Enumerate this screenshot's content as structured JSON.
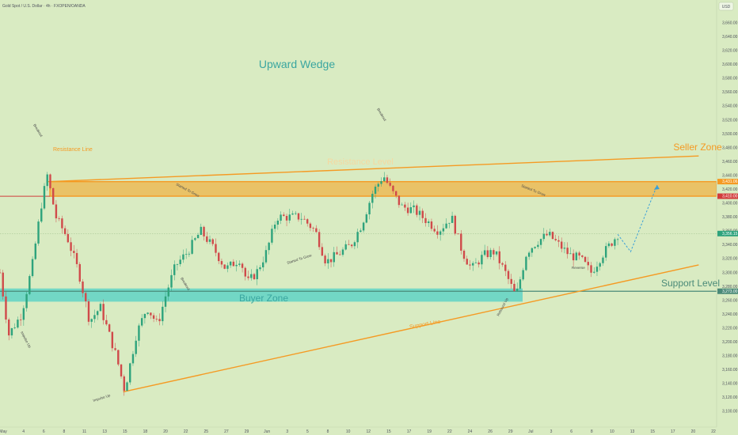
{
  "header": {
    "symbol": "Gold Spot / U.S. Dollar · 4h · FXOPEN/OANDA",
    "currency_button": "USD"
  },
  "colors": {
    "background": "#d9ebc2",
    "up_candle": "#2ea37c",
    "down_candle": "#d04a4a",
    "resistance": "#f59a23",
    "support_zone": "#5fd3c6",
    "support_line_color": "#4a8a78",
    "label_teal": "#3aa6a0",
    "label_orange": "#f59a23",
    "projection": "#3aa0d8",
    "red_level": "#d23c3c"
  },
  "chart_data": {
    "type": "candlestick",
    "title": "Upward Wedge",
    "ylim": [
      3100,
      3670
    ],
    "y_ticks": [
      "3,100.00",
      "3,120.00",
      "3,140.00",
      "3,160.00",
      "3,180.00",
      "3,200.00",
      "3,220.00",
      "3,240.00",
      "3,260.00",
      "3,280.00",
      "3,300.00",
      "3,320.00",
      "3,340.00",
      "3,360.00",
      "3,380.00",
      "3,400.00",
      "3,420.00",
      "3,440.00",
      "3,460.00",
      "3,480.00",
      "3,500.00",
      "3,520.00",
      "3,540.00",
      "3,560.00",
      "3,580.00",
      "3,600.00",
      "3,620.00",
      "3,640.00",
      "3,660.00"
    ],
    "x_ticks": [
      "May",
      "4",
      "6",
      "8",
      "11",
      "13",
      "15",
      "18",
      "20",
      "22",
      "25",
      "27",
      "29",
      "Jun",
      "3",
      "5",
      "8",
      "10",
      "12",
      "15",
      "17",
      "19",
      "22",
      "24",
      "26",
      "29",
      "Jul",
      "3",
      "6",
      "8",
      "10",
      "13",
      "15",
      "17",
      "20",
      "22"
    ],
    "price_badges": [
      {
        "value": "3,431.06",
        "color": "#f59a23"
      },
      {
        "value": "3,410.00",
        "color": "#d23c3c"
      },
      {
        "value": "3,356.15",
        "color": "#2ea37c"
      },
      {
        "value": "3,273.00",
        "color": "#4a8a78"
      }
    ],
    "resistance_zone": {
      "low": 3410,
      "high": 3431
    },
    "support_zone": {
      "low": 3258,
      "high": 3277
    },
    "support_level": 3273,
    "red_level": 3410,
    "resistance_line": {
      "from": [
        0.067,
        3431
      ],
      "to": [
        0.975,
        3468
      ]
    },
    "support_line": {
      "from": [
        0.172,
        3128
      ],
      "to": [
        0.975,
        3311
      ]
    },
    "projection": [
      [
        0.862,
        3355
      ],
      [
        0.88,
        3330
      ],
      [
        0.917,
        3426
      ]
    ],
    "candle_path": [
      [
        0.0,
        3300
      ],
      [
        0.012,
        3210
      ],
      [
        0.03,
        3240
      ],
      [
        0.045,
        3310
      ],
      [
        0.058,
        3400
      ],
      [
        0.066,
        3440
      ],
      [
        0.078,
        3380
      ],
      [
        0.094,
        3350
      ],
      [
        0.11,
        3300
      ],
      [
        0.125,
        3230
      ],
      [
        0.14,
        3250
      ],
      [
        0.162,
        3180
      ],
      [
        0.174,
        3130
      ],
      [
        0.19,
        3210
      ],
      [
        0.205,
        3250
      ],
      [
        0.22,
        3225
      ],
      [
        0.232,
        3270
      ],
      [
        0.245,
        3310
      ],
      [
        0.262,
        3330
      ],
      [
        0.28,
        3360
      ],
      [
        0.298,
        3335
      ],
      [
        0.315,
        3305
      ],
      [
        0.335,
        3320
      ],
      [
        0.345,
        3285
      ],
      [
        0.358,
        3300
      ],
      [
        0.372,
        3330
      ],
      [
        0.386,
        3380
      ],
      [
        0.402,
        3380
      ],
      [
        0.42,
        3380
      ],
      [
        0.44,
        3360
      ],
      [
        0.455,
        3315
      ],
      [
        0.47,
        3325
      ],
      [
        0.49,
        3340
      ],
      [
        0.505,
        3370
      ],
      [
        0.52,
        3415
      ],
      [
        0.535,
        3440
      ],
      [
        0.545,
        3420
      ],
      [
        0.56,
        3395
      ],
      [
        0.578,
        3390
      ],
      [
        0.595,
        3375
      ],
      [
        0.612,
        3360
      ],
      [
        0.63,
        3380
      ],
      [
        0.645,
        3330
      ],
      [
        0.658,
        3305
      ],
      [
        0.675,
        3325
      ],
      [
        0.69,
        3330
      ],
      [
        0.705,
        3300
      ],
      [
        0.72,
        3265
      ],
      [
        0.735,
        3330
      ],
      [
        0.75,
        3345
      ],
      [
        0.765,
        3355
      ],
      [
        0.78,
        3340
      ],
      [
        0.795,
        3325
      ],
      [
        0.81,
        3320
      ],
      [
        0.825,
        3300
      ],
      [
        0.84,
        3325
      ],
      [
        0.862,
        3355
      ]
    ]
  },
  "annotations": {
    "title": "Upward Wedge",
    "resistance_line_label": "Resistance Line",
    "resistance_level_label": "Resistance Level",
    "seller_zone_label": "Seller Zone",
    "buyer_zone_label": "Buyer Zone",
    "support_level_label": "Support Level",
    "support_line_label": "Support Line",
    "small": [
      {
        "text": "Impulse Up"
      },
      {
        "text": "Impulse Up"
      },
      {
        "text": "Breakout"
      },
      {
        "text": "Breakout"
      },
      {
        "text": "Started To Grow"
      },
      {
        "text": "Started To Grow"
      },
      {
        "text": "Rebound Up"
      },
      {
        "text": "Reverse"
      }
    ]
  }
}
